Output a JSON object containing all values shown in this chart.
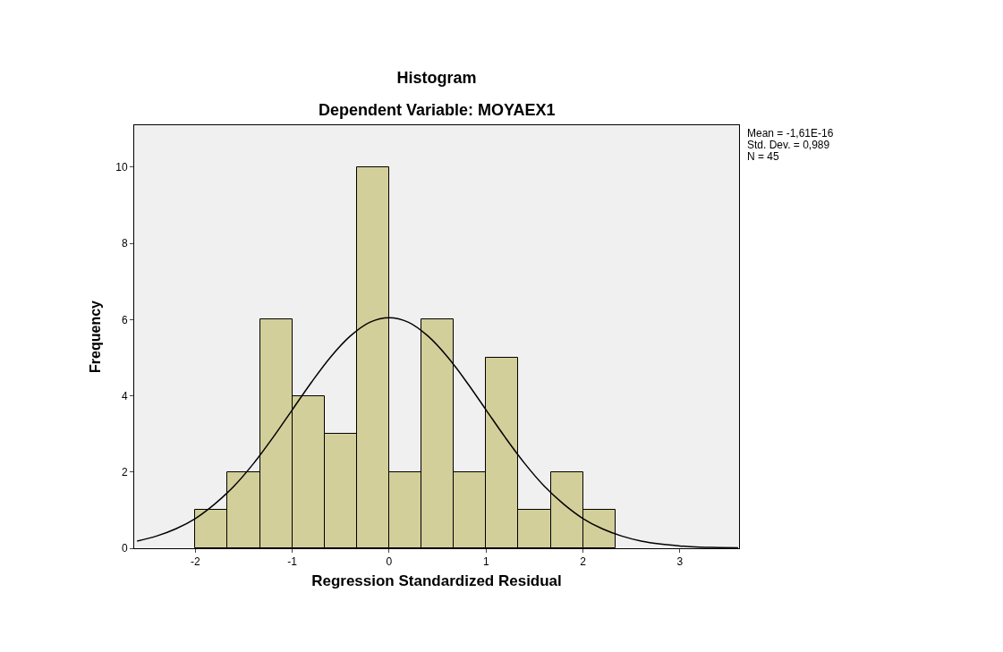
{
  "chart_data": {
    "type": "histogram",
    "title": "Histogram",
    "subtitle": "Dependent Variable: MOYAEX1",
    "xlabel": "Regression Standardized Residual",
    "ylabel": "Frequency",
    "bins": [
      -2,
      -1.667,
      -1.333,
      -1,
      -0.667,
      -0.333,
      0,
      0.333,
      0.667,
      1,
      1.333,
      1.667,
      2,
      2.333
    ],
    "values": [
      1,
      2,
      6,
      4,
      3,
      10,
      2,
      6,
      2,
      5,
      1,
      2,
      1
    ],
    "color": "#d3cf9a",
    "series": [
      {
        "type": "line",
        "color": "#000000",
        "x": [
          -2.6,
          -2.4,
          -2.2,
          -2.0,
          -1.8,
          -1.6,
          -1.4,
          -1.2,
          -1.0,
          -0.8,
          -0.6,
          -0.4,
          -0.2,
          0,
          0.2,
          0.4,
          0.6,
          0.8,
          1.0,
          1.2,
          1.4,
          1.6,
          1.8,
          2.0,
          2.2,
          2.4,
          2.6,
          2.8,
          3.0,
          3.2,
          3.4,
          3.6
        ],
        "values": [
          0.19,
          0.32,
          0.51,
          0.78,
          1.16,
          1.63,
          2.22,
          2.9,
          3.63,
          4.36,
          5.03,
          5.57,
          5.93,
          6.05,
          5.93,
          5.57,
          5.03,
          4.36,
          3.63,
          2.9,
          2.22,
          1.63,
          1.16,
          0.78,
          0.51,
          0.32,
          0.19,
          0.11,
          0.06,
          0.03,
          0.02,
          0.01
        ]
      }
    ],
    "annotations": [
      "Mean = -1,61E-16",
      "Std. Dev. = 0,989",
      "N = 45"
    ],
    "xlim": [
      -2.63,
      3.61
    ],
    "ylim": [
      0,
      11.1
    ],
    "xticks": [
      -2,
      -1,
      0,
      1,
      2,
      3
    ],
    "yticks": [
      0,
      2,
      4,
      6,
      8,
      10
    ],
    "marker": "none",
    "line_style": "solid",
    "grid": false,
    "legend": false
  }
}
